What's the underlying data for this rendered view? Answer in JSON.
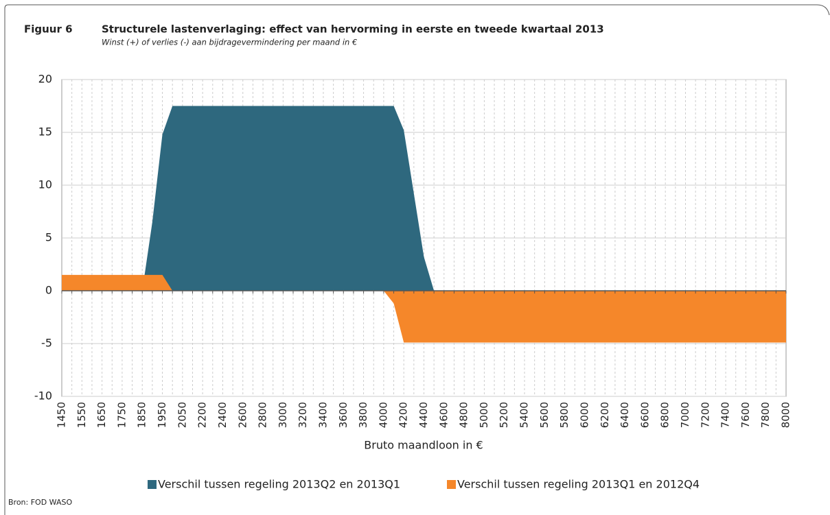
{
  "figure_label": "Figuur 6",
  "source": "Bron: FOD WASO",
  "chart_data": {
    "type": "area",
    "title": "Structurele lastenverlaging: effect van hervorming in eerste en tweede kwartaal 2013",
    "subtitle": "Winst (+) of verlies (-) aan bijdragevermindering per maand in €",
    "x_label": "Bruto maandloon in €",
    "categories": [
      "1450",
      null,
      "1550",
      null,
      "1650",
      null,
      "1750",
      null,
      "1850",
      null,
      "1950",
      null,
      "2050",
      null,
      "2200",
      null,
      "2400",
      null,
      "2600",
      null,
      "2800",
      null,
      "3000",
      null,
      "3200",
      null,
      "3400",
      null,
      "3600",
      null,
      "3800",
      null,
      "4000",
      null,
      "4200",
      null,
      "4400",
      null,
      "4600",
      null,
      "4800",
      null,
      "5000",
      null,
      "5200",
      null,
      "5400",
      null,
      "5600",
      null,
      "5800",
      null,
      "6000",
      null,
      "6200",
      null,
      "6400",
      null,
      "6600",
      null,
      "6800",
      null,
      "7000",
      null,
      "7200",
      null,
      "7400",
      null,
      "7600",
      null,
      "7800",
      null,
      "8000"
    ],
    "series": [
      {
        "name": "Verschil tussen regeling 2013Q2 en 2013Q1",
        "color": "#2e687e",
        "values": [
          0,
          0,
          0,
          0,
          0,
          0,
          0,
          0,
          0,
          6.5,
          14.8,
          17.5,
          17.5,
          17.5,
          17.5,
          17.5,
          17.5,
          17.5,
          17.5,
          17.5,
          17.5,
          17.5,
          17.5,
          17.5,
          17.5,
          17.5,
          17.5,
          17.5,
          17.5,
          17.5,
          17.5,
          17.5,
          17.5,
          17.5,
          15.2,
          9.2,
          3.2,
          0,
          0,
          0,
          0,
          0,
          0,
          0,
          0,
          0,
          0,
          0,
          0,
          0,
          0,
          0,
          0,
          0,
          0,
          0,
          0,
          0,
          0,
          0,
          0,
          0,
          0,
          0,
          0,
          0,
          0,
          0,
          0,
          0,
          0,
          0,
          0
        ]
      },
      {
        "name": "Verschil tussen regeling 2013Q1 en 2012Q4",
        "color": "#f5872a",
        "values": [
          1.5,
          1.5,
          1.5,
          1.5,
          1.5,
          1.5,
          1.5,
          1.5,
          1.5,
          1.5,
          1.5,
          0,
          0,
          0,
          0,
          0,
          0,
          0,
          0,
          0,
          0,
          0,
          0,
          0,
          0,
          0,
          0,
          0,
          0,
          0,
          0,
          0,
          0,
          -1.2,
          -4.9,
          -4.9,
          -4.9,
          -4.9,
          -4.9,
          -4.9,
          -4.9,
          -4.9,
          -4.9,
          -4.9,
          -4.9,
          -4.9,
          -4.9,
          -4.9,
          -4.9,
          -4.9,
          -4.9,
          -4.9,
          -4.9,
          -4.9,
          -4.9,
          -4.9,
          -4.9,
          -4.9,
          -4.9,
          -4.9,
          -4.9,
          -4.9,
          -4.9,
          -4.9,
          -4.9,
          -4.9,
          -4.9,
          -4.9,
          -4.9,
          -4.9,
          -4.9,
          -4.9,
          -4.9
        ]
      }
    ],
    "ylim": [
      -10,
      20
    ],
    "yticks": [
      -10,
      -5,
      0,
      5,
      10,
      15,
      20
    ],
    "grid": true,
    "legend": "bottom"
  }
}
